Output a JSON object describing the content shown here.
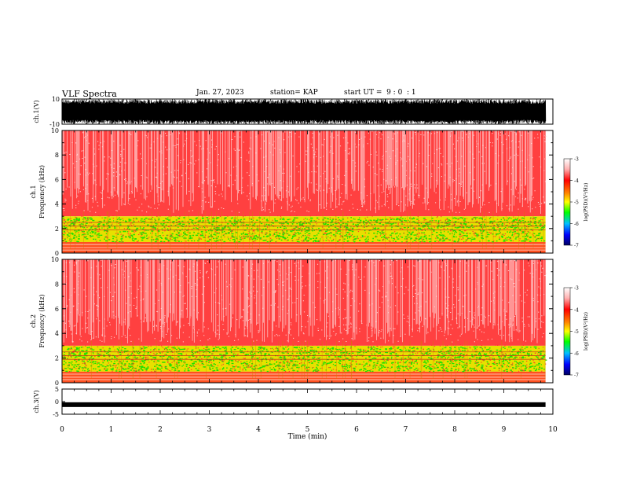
{
  "header": {
    "title": "VLF Spectra",
    "date": "Jan. 27, 2023",
    "station": "station= KAP",
    "start_ut": "start UT =  9 : 0  : 1"
  },
  "colors": {
    "red": "#ff1a1a",
    "pale_red": "#ffb0b0",
    "yellow": "#ffee00",
    "green": "#22e000",
    "axis": "#000000"
  },
  "chart_data": [
    {
      "type": "line",
      "ylabel": "ch.1(V)",
      "ylim": [
        -10,
        10
      ],
      "yticks": [
        "10",
        "-10"
      ],
      "description_of_signal": "noisy waveform spanning full range",
      "xlim": [
        0,
        10
      ]
    },
    {
      "type": "heatmap",
      "ylabel": "ch.1\nFrequency (kHz)",
      "ylabel_line1": "ch.1",
      "ylabel_line2": "Frequency (kHz)",
      "ylim": [
        0,
        10
      ],
      "yticks": [
        "0",
        "2",
        "4",
        "6",
        "8",
        "10"
      ],
      "xlim": [
        0,
        9.85
      ],
      "bands": [
        {
          "from_khz": 0.0,
          "to_khz": 0.9,
          "color": "red-yellow"
        },
        {
          "from_khz": 0.9,
          "to_khz": 3.0,
          "color": "green-yellow"
        },
        {
          "from_khz": 3.0,
          "to_khz": 10.0,
          "color": "red-white"
        }
      ],
      "colorbar": {
        "label": "log(PSD)(V²/Hz)",
        "ticks": [
          "-3",
          "-4",
          "-5",
          "-6",
          "-7"
        ],
        "range": [
          -7,
          -3
        ]
      }
    },
    {
      "type": "heatmap",
      "ylabel": "ch.2\nFrequency (kHz)",
      "ylabel_line1": "ch.2",
      "ylabel_line2": "Frequency (kHz)",
      "ylim": [
        0,
        10
      ],
      "yticks": [
        "0",
        "2",
        "4",
        "6",
        "8",
        "10"
      ],
      "xlim": [
        0,
        9.85
      ],
      "bands": [
        {
          "from_khz": 0.0,
          "to_khz": 0.9,
          "color": "red-yellow"
        },
        {
          "from_khz": 0.9,
          "to_khz": 3.0,
          "color": "green-yellow"
        },
        {
          "from_khz": 3.0,
          "to_khz": 10.0,
          "color": "red-white"
        }
      ],
      "colorbar": {
        "label": "log(PSD)(V²/Hz)",
        "ticks": [
          "-3",
          "-4",
          "-5",
          "-6",
          "-7"
        ],
        "range": [
          -7,
          -3
        ]
      }
    },
    {
      "type": "line",
      "ylabel": "ch.3(V)",
      "ylim": [
        -5,
        5
      ],
      "yticks": [
        "5",
        "0",
        "-5"
      ],
      "level": -1.2,
      "xlim": [
        0,
        9.85
      ]
    }
  ],
  "xaxis": {
    "label": "Time (min)",
    "ticks": [
      "0",
      "1",
      "2",
      "3",
      "4",
      "5",
      "6",
      "7",
      "8",
      "9",
      "10"
    ],
    "range": [
      0,
      10
    ]
  }
}
